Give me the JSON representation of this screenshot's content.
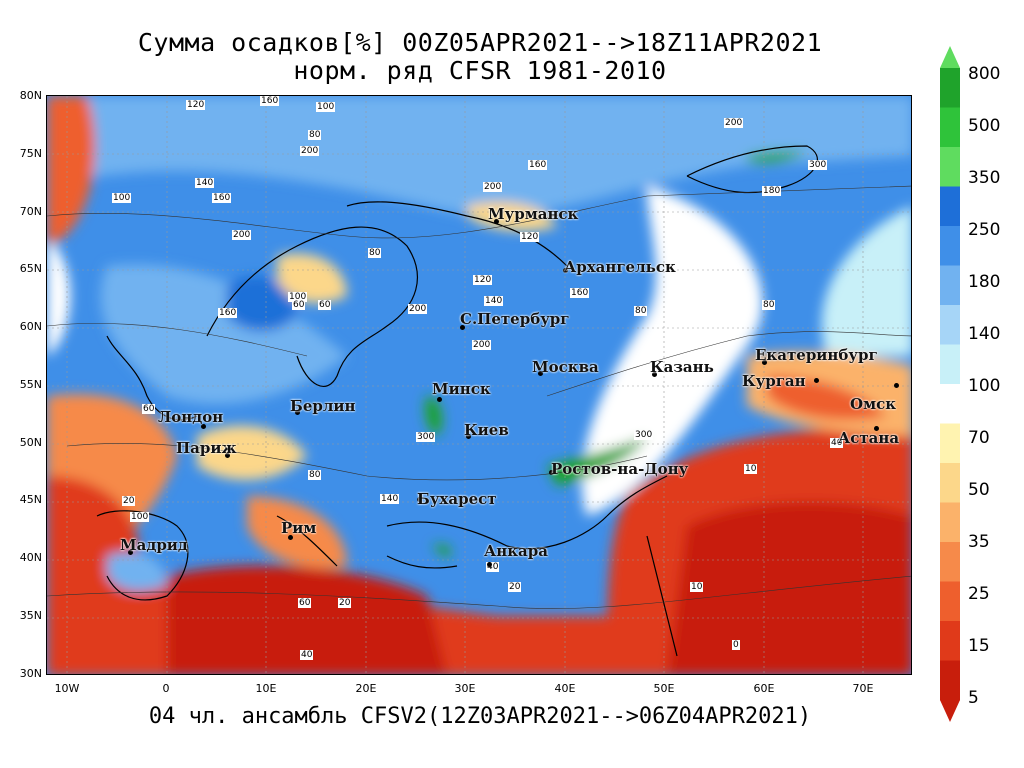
{
  "title": {
    "line1": "Сумма осадков[%] 00Z05APR2021-->18Z11APR2021",
    "line2": "норм. ряд CFSR 1981-2010"
  },
  "footer": "04 чл. ансамбль CFSV2(12Z03APR2021-->06Z04APR2021)",
  "axes": {
    "lat_labels": [
      "80N",
      "75N",
      "70N",
      "65N",
      "60N",
      "55N",
      "50N",
      "45N",
      "40N",
      "35N",
      "30N"
    ],
    "lon_labels": [
      "10W",
      "0",
      "10E",
      "20E",
      "30E",
      "40E",
      "50E",
      "60E",
      "70E"
    ]
  },
  "cities": {
    "murmansk": "Мурманск",
    "arkhangelsk": "Архангельск",
    "spb": "С.Петербург",
    "moscow": "Москва",
    "kazan": "Казань",
    "yekaterinburg": "Екатеринбург",
    "kurgan": "Курган",
    "omsk": "Омск",
    "astana": "Астана",
    "minsk": "Минск",
    "berlin": "Берлин",
    "london": "Лондон",
    "paris": "Париж",
    "kiev": "Киев",
    "rostov": "Ростов-на-Дону",
    "bucharest": "Бухарест",
    "rome": "Рим",
    "madrid": "Мадрид",
    "ankara": "Анкара"
  },
  "contour_labels": [
    "120",
    "160",
    "100",
    "80",
    "200",
    "140",
    "160",
    "200",
    "100",
    "120",
    "200",
    "80",
    "300",
    "160",
    "180",
    "200",
    "60",
    "140",
    "100",
    "120",
    "80",
    "200",
    "300",
    "160",
    "160",
    "200",
    "80",
    "60",
    "300",
    "140",
    "100",
    "80",
    "60",
    "40",
    "20",
    "10",
    "40",
    "60",
    "20",
    "40",
    "0",
    "10",
    "20"
  ],
  "colorbar": {
    "labels": [
      "800",
      "500",
      "350",
      "250",
      "180",
      "140",
      "100",
      "70",
      "50",
      "35",
      "25",
      "15",
      "5"
    ],
    "colors": [
      "#1fa32b",
      "#2fc33a",
      "#5fdc5f",
      "#1e6fd8",
      "#3f8fe8",
      "#71b2f0",
      "#a6d5f7",
      "#c8f0f8",
      "#ffffff",
      "#fff3b0",
      "#fcd78a",
      "#fbb26a",
      "#f68a4a",
      "#ee5f2d",
      "#e03a1a",
      "#c81e0c"
    ],
    "arrow_top_color": "#5fdc5f",
    "arrow_bottom_color": "#c81e0c"
  }
}
